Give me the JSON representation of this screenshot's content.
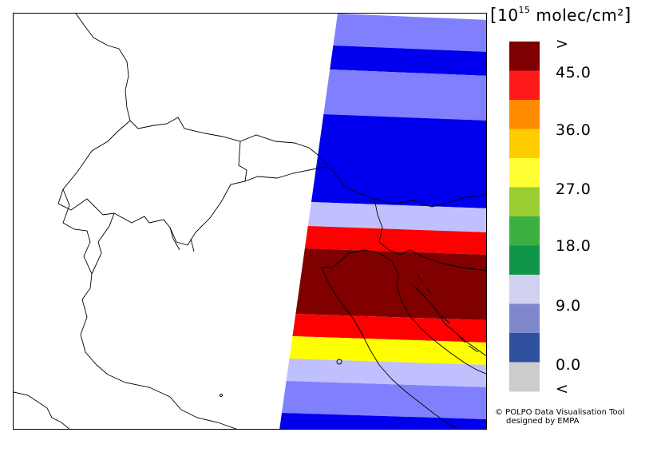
{
  "map": {
    "swath_bands": [
      {
        "class": "9.0",
        "color": "#8080ff"
      },
      {
        "class": "0.0",
        "color": "#0000ee"
      },
      {
        "class": "9.0",
        "color": "#8080ff"
      },
      {
        "class": "0.0",
        "color": "#0000ee"
      },
      {
        "class": "<9",
        "color": "#c0c0ff"
      },
      {
        "class": "45.0",
        "color": "#ff0000"
      },
      {
        "class": ">",
        "color": "#800000"
      },
      {
        "class": "45.0",
        "color": "#ff0000"
      },
      {
        "class": "27.0",
        "color": "#ffff00"
      },
      {
        "class": "<9",
        "color": "#c0c0ff"
      },
      {
        "class": "9.0",
        "color": "#8080ff"
      },
      {
        "class": "0.0",
        "color": "#0000ee"
      }
    ]
  },
  "legend": {
    "unit_prefix": "10",
    "unit_exponent": "15",
    "unit_suffix": " molec/cm²",
    "swatches": [
      {
        "color": "#7f0000"
      },
      {
        "color": "#ff1a1a"
      },
      {
        "color": "#ff8a00"
      },
      {
        "color": "#ffcc00"
      },
      {
        "color": "#ffff33"
      },
      {
        "color": "#9acd32"
      },
      {
        "color": "#3cb043"
      },
      {
        "color": "#109648"
      },
      {
        "color": "#d0d0f0"
      },
      {
        "color": "#8088cc"
      },
      {
        "color": "#3050a0"
      },
      {
        "color": "#cccccc"
      }
    ],
    "labels": [
      ">",
      "45.0",
      "36.0",
      "27.0",
      "18.0",
      "9.0",
      "0.0",
      "<"
    ]
  },
  "credit": {
    "line1": "© POLPO Data Visualisation Tool",
    "line2": "designed by EMPA"
  }
}
